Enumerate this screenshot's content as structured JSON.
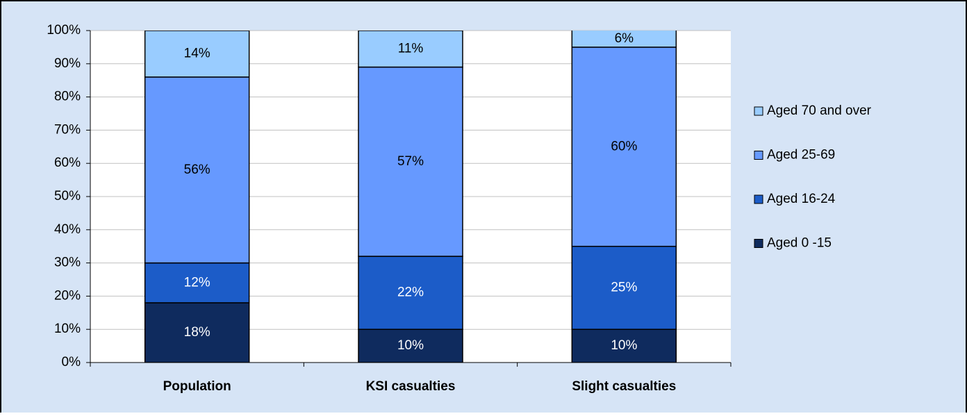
{
  "chart_data": {
    "type": "stacked-bar",
    "categories": [
      "Population",
      "KSI casualties",
      "Slight casualties"
    ],
    "series": [
      {
        "name": "Aged 0 -15",
        "color": "#0f2b5e",
        "label_color": "#ffffff",
        "values": [
          18,
          10,
          10
        ],
        "value_labels": [
          "18%",
          "10%",
          "10%"
        ]
      },
      {
        "name": "Aged 16-24",
        "color": "#1c5cc8",
        "label_color": "#ffffff",
        "values": [
          12,
          22,
          25
        ],
        "value_labels": [
          "12%",
          "22%",
          "25%"
        ]
      },
      {
        "name": "Aged 25-69",
        "color": "#6699ff",
        "label_color": "#000000",
        "values": [
          56,
          57,
          60
        ],
        "value_labels": [
          "56%",
          "57%",
          "60%"
        ]
      },
      {
        "name": "Aged 70 and over",
        "color": "#99ccff",
        "label_color": "#000000",
        "values": [
          14,
          11,
          6
        ],
        "value_labels": [
          "14%",
          "11%",
          "6%"
        ]
      }
    ],
    "ylim": [
      0,
      100
    ],
    "yticks": [
      {
        "value": 0,
        "label": "0%"
      },
      {
        "value": 10,
        "label": "10%"
      },
      {
        "value": 20,
        "label": "20%"
      },
      {
        "value": 30,
        "label": "30%"
      },
      {
        "value": 40,
        "label": "40%"
      },
      {
        "value": 50,
        "label": "50%"
      },
      {
        "value": 60,
        "label": "60%"
      },
      {
        "value": 70,
        "label": "70%"
      },
      {
        "value": 80,
        "label": "80%"
      },
      {
        "value": 90,
        "label": "90%"
      },
      {
        "value": 100,
        "label": "100%"
      }
    ],
    "grid": true,
    "legend": "right"
  }
}
